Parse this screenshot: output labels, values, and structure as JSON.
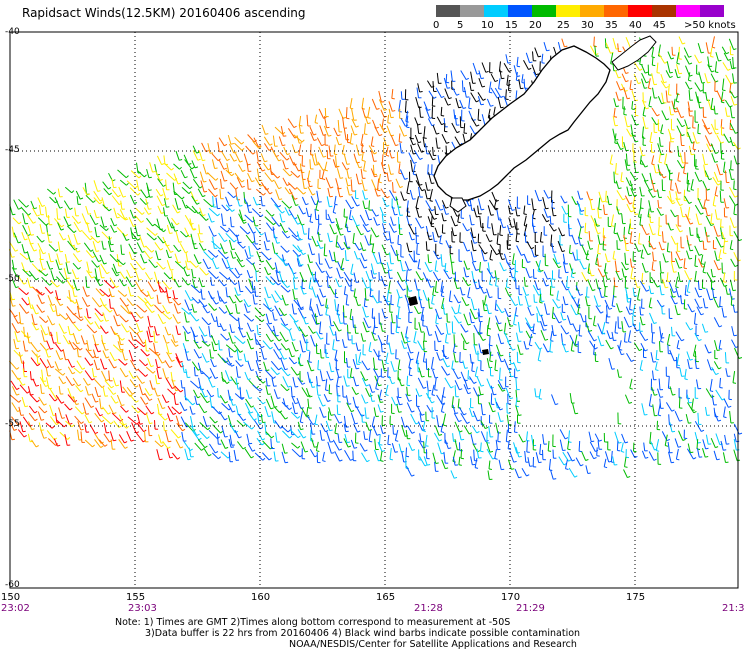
{
  "title": "Rapidsact Winds(12.5KM) 20160406 ascending",
  "colorbar": {
    "colors": [
      "#555555",
      "#999999",
      "#00ccff",
      "#0055ff",
      "#00bb00",
      "#ffee00",
      "#ffaa00",
      "#ff6600",
      "#ff0000",
      "#aa3300",
      "#ff00ff",
      "#9900cc"
    ],
    "ticks": [
      "0",
      "5",
      "10",
      "15",
      "20",
      "25",
      "30",
      "35",
      "40",
      "45",
      ">50 knots"
    ]
  },
  "lat_labels": [
    "-40",
    "-45",
    "-50",
    "-55",
    "-60"
  ],
  "lon_labels": [
    "150",
    "155",
    "160",
    "165",
    "170",
    "175"
  ],
  "time_labels": [
    "23:02",
    "23:03",
    "21:28",
    "21:29",
    "21:3"
  ],
  "notes": [
    "Note: 1) Times are GMT 2)Times along bottom correspond to measurement at -50S",
    "3)Data buffer is 22 hrs from 20160406 4) Black wind barbs indicate possible contamination",
    "NOAA/NESDIS/Center for Satellite Applications and Research"
  ]
}
